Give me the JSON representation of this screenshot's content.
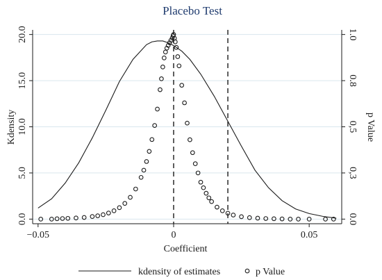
{
  "chart_data": {
    "type": "scatter",
    "title": "Placebo Test",
    "xlabel": "Coefficient",
    "ylabel_left": "Kdensity",
    "ylabel_right": "p Value",
    "xlim": [
      -0.052,
      0.062
    ],
    "ylim_left": [
      -0.5,
      20.5
    ],
    "ylim_right": [
      -0.025,
      1.025
    ],
    "x_ticks": [
      -0.05,
      0,
      0.05
    ],
    "x_tick_labels": [
      "−0.05",
      "0",
      "0.05"
    ],
    "y_left_ticks": [
      0,
      5,
      10,
      15,
      20
    ],
    "y_left_tick_labels": [
      "0.0",
      "5.0",
      "10.0",
      "15.0",
      "20.0"
    ],
    "y_right_ticks": [
      0,
      0.25,
      0.5,
      0.75,
      1.0
    ],
    "y_right_tick_labels": [
      "0.0",
      "0,3",
      "0,5",
      "0.8",
      "1.0"
    ],
    "grid": true,
    "reference_lines": [
      0,
      0.02
    ],
    "legend_position": "bottom",
    "series": [
      {
        "name": "kdensity of estimates",
        "kind": "line",
        "axis": "left",
        "x": [
          -0.05,
          -0.045,
          -0.04,
          -0.035,
          -0.03,
          -0.025,
          -0.02,
          -0.015,
          -0.01,
          -0.008,
          -0.006,
          -0.004,
          -0.002,
          0.0,
          0.003,
          0.006,
          0.01,
          0.015,
          0.02,
          0.025,
          0.03,
          0.035,
          0.04,
          0.045,
          0.05,
          0.055,
          0.06
        ],
        "y": [
          1.2,
          2.2,
          3.9,
          6.1,
          8.8,
          11.8,
          14.9,
          17.3,
          18.9,
          19.2,
          19.3,
          19.3,
          19.1,
          18.8,
          18.2,
          17.3,
          15.7,
          13.3,
          10.6,
          7.9,
          5.3,
          3.4,
          2.0,
          1.1,
          0.6,
          0.3,
          0.1
        ]
      },
      {
        "name": "p Value",
        "kind": "markers",
        "axis": "right",
        "x": [
          -0.049,
          -0.045,
          -0.043,
          -0.041,
          -0.039,
          -0.036,
          -0.033,
          -0.03,
          -0.028,
          -0.026,
          -0.024,
          -0.022,
          -0.02,
          -0.018,
          -0.016,
          -0.014,
          -0.012,
          -0.011,
          -0.01,
          -0.009,
          -0.008,
          -0.007,
          -0.006,
          -0.005,
          -0.0045,
          -0.004,
          -0.0035,
          -0.003,
          -0.0025,
          -0.002,
          -0.0015,
          -0.001,
          -0.0005,
          -0.0002,
          0.0,
          0.0003,
          0.0006,
          0.001,
          0.0015,
          0.002,
          0.003,
          0.004,
          0.005,
          0.006,
          0.007,
          0.008,
          0.009,
          0.01,
          0.011,
          0.012,
          0.013,
          0.014,
          0.016,
          0.018,
          0.02,
          0.022,
          0.025,
          0.028,
          0.031,
          0.034,
          0.037,
          0.04,
          0.043,
          0.046,
          0.05,
          0.056,
          0.059
        ],
        "y": [
          0.0,
          0.0,
          0.002,
          0.003,
          0.004,
          0.006,
          0.009,
          0.014,
          0.018,
          0.024,
          0.033,
          0.045,
          0.062,
          0.085,
          0.118,
          0.163,
          0.226,
          0.265,
          0.312,
          0.367,
          0.431,
          0.507,
          0.596,
          0.701,
          0.76,
          0.824,
          0.873,
          0.905,
          0.926,
          0.941,
          0.955,
          0.968,
          0.981,
          0.993,
          1.0,
          0.98,
          0.96,
          0.93,
          0.88,
          0.83,
          0.725,
          0.63,
          0.52,
          0.43,
          0.36,
          0.3,
          0.25,
          0.2,
          0.17,
          0.14,
          0.115,
          0.095,
          0.065,
          0.045,
          0.032,
          0.022,
          0.013,
          0.008,
          0.005,
          0.003,
          0.002,
          0.001,
          0.0,
          0.0,
          0.0,
          0.0,
          0.0
        ]
      }
    ]
  }
}
